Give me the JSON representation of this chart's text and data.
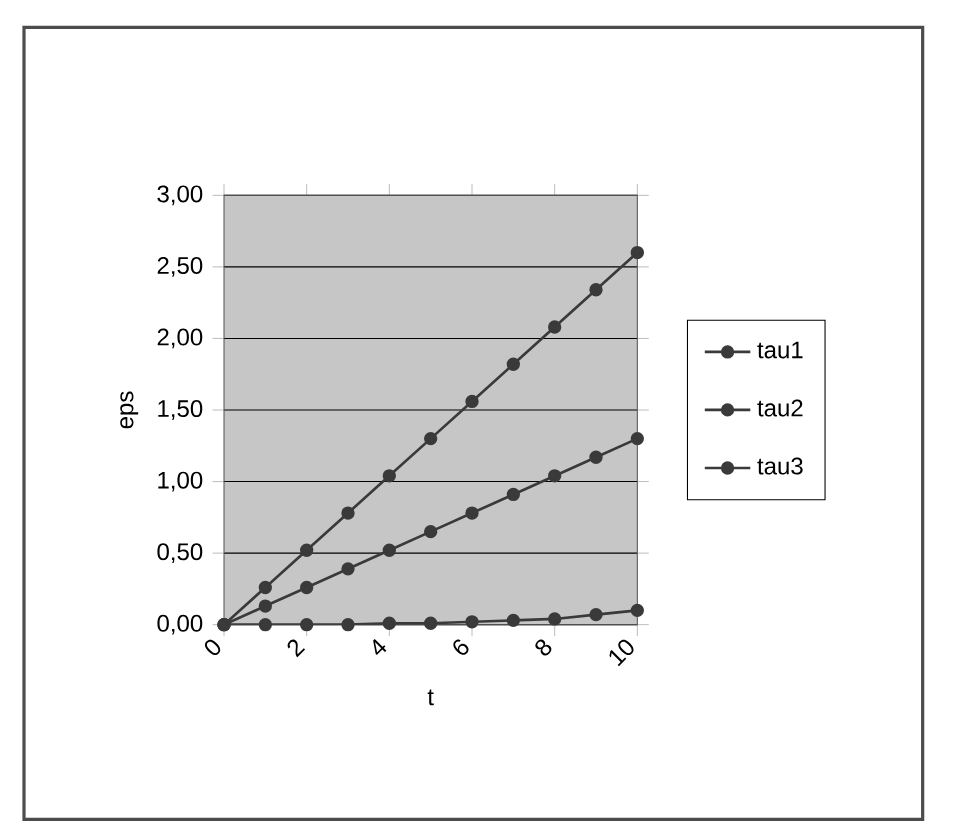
{
  "chart_data": {
    "type": "line",
    "xlabel": "t",
    "ylabel": "eps",
    "x": [
      0,
      1,
      2,
      3,
      4,
      5,
      6,
      7,
      8,
      9,
      10
    ],
    "series": [
      {
        "name": "tau1",
        "color": "#3a3a3a",
        "values": [
          0,
          0.26,
          0.52,
          0.78,
          1.04,
          1.3,
          1.56,
          1.82,
          2.08,
          2.34,
          2.6
        ]
      },
      {
        "name": "tau2",
        "color": "#3a3a3a",
        "values": [
          0,
          0.13,
          0.26,
          0.39,
          0.52,
          0.65,
          0.78,
          0.91,
          1.04,
          1.17,
          1.3
        ]
      },
      {
        "name": "tau3",
        "color": "#3a3a3a",
        "values": [
          0,
          0,
          0,
          0,
          0.01,
          0.01,
          0.02,
          0.03,
          0.04,
          0.07,
          0.1
        ]
      }
    ],
    "xlim": [
      0,
      10
    ],
    "xticks": [
      0,
      2,
      4,
      6,
      8,
      10
    ],
    "ylim": [
      0,
      3
    ],
    "yticks": [
      {
        "value": 0,
        "label": "0,00"
      },
      {
        "value": 0.5,
        "label": "0,50"
      },
      {
        "value": 1,
        "label": "1,00"
      },
      {
        "value": 1.5,
        "label": "1,50"
      },
      {
        "value": 2,
        "label": "2,00"
      },
      {
        "value": 2.5,
        "label": "2,50"
      },
      {
        "value": 3,
        "label": "3,00"
      }
    ],
    "grid": "y",
    "legend": "right",
    "marker": "circle",
    "line_style": "solid"
  }
}
